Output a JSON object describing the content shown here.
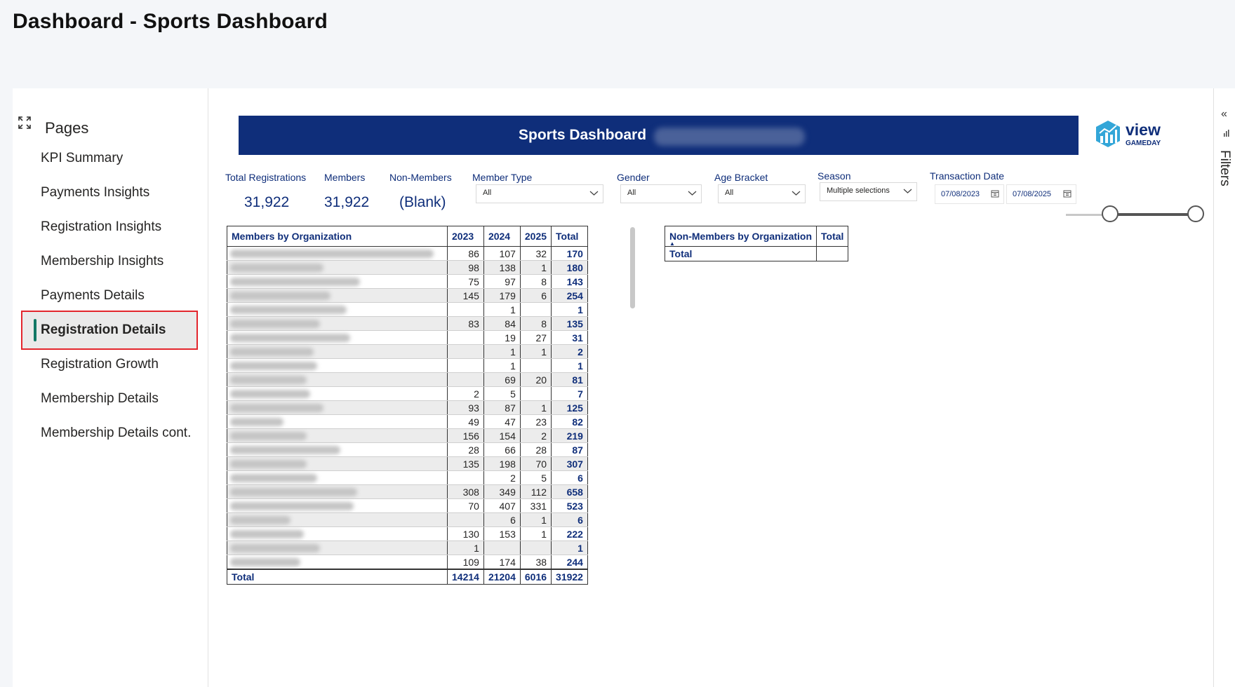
{
  "window": {
    "title": "Dashboard - Sports Dashboard"
  },
  "sidebar": {
    "title": "Pages",
    "items": [
      {
        "label": "KPI Summary"
      },
      {
        "label": "Payments Insights"
      },
      {
        "label": "Registration Insights"
      },
      {
        "label": "Membership Insights"
      },
      {
        "label": "Payments Details"
      },
      {
        "label": "Registration Details",
        "active": true
      },
      {
        "label": "Registration Growth"
      },
      {
        "label": "Membership Details"
      },
      {
        "label": "Membership Details cont."
      }
    ]
  },
  "banner": {
    "title": "Sports Dashboard"
  },
  "logo": {
    "main": "view",
    "sub": "GAMEDAY"
  },
  "kpis": [
    {
      "label": "Total Registrations",
      "value": "31,922"
    },
    {
      "label": "Members",
      "value": "31,922"
    },
    {
      "label": "Non-Members",
      "value": "(Blank)"
    }
  ],
  "slicers": {
    "member_type": {
      "label": "Member Type",
      "value": "All"
    },
    "gender": {
      "label": "Gender",
      "value": "All"
    },
    "age_bracket": {
      "label": "Age Bracket",
      "value": "All"
    },
    "season": {
      "label": "Season",
      "value": "Multiple selections"
    },
    "transaction_date": {
      "label": "Transaction Date",
      "start": "07/08/2023",
      "end": "07/08/2025"
    }
  },
  "members_table": {
    "headers": [
      "Members by Organization",
      "2023",
      "2024",
      "2025",
      "Total"
    ],
    "rows": [
      [
        "86",
        "107",
        "32",
        "170"
      ],
      [
        "98",
        "138",
        "1",
        "180"
      ],
      [
        "75",
        "97",
        "8",
        "143"
      ],
      [
        "145",
        "179",
        "6",
        "254"
      ],
      [
        "",
        "1",
        "",
        "1"
      ],
      [
        "83",
        "84",
        "8",
        "135"
      ],
      [
        "",
        "19",
        "27",
        "31"
      ],
      [
        "",
        "1",
        "1",
        "2"
      ],
      [
        "",
        "1",
        "",
        "1"
      ],
      [
        "",
        "69",
        "20",
        "81"
      ],
      [
        "2",
        "5",
        "",
        "7"
      ],
      [
        "93",
        "87",
        "1",
        "125"
      ],
      [
        "49",
        "47",
        "23",
        "82"
      ],
      [
        "156",
        "154",
        "2",
        "219"
      ],
      [
        "28",
        "66",
        "28",
        "87"
      ],
      [
        "135",
        "198",
        "70",
        "307"
      ],
      [
        "",
        "2",
        "5",
        "6"
      ],
      [
        "308",
        "349",
        "112",
        "658"
      ],
      [
        "70",
        "407",
        "331",
        "523"
      ],
      [
        "",
        "6",
        "1",
        "6"
      ],
      [
        "130",
        "153",
        "1",
        "222"
      ],
      [
        "1",
        "",
        "",
        "1"
      ],
      [
        "109",
        "174",
        "38",
        "244"
      ]
    ],
    "total_row": [
      "Total",
      "14214",
      "21204",
      "6016",
      "31922"
    ]
  },
  "nonmembers_table": {
    "headers": [
      "Non-Members by Organization",
      "Total"
    ],
    "total_label": "Total",
    "total_value": ""
  },
  "filters_pane": {
    "label": "Filters"
  },
  "colors": {
    "accent": "#0f2e7a",
    "active_bar": "#117865",
    "highlight": "#e3262d"
  }
}
